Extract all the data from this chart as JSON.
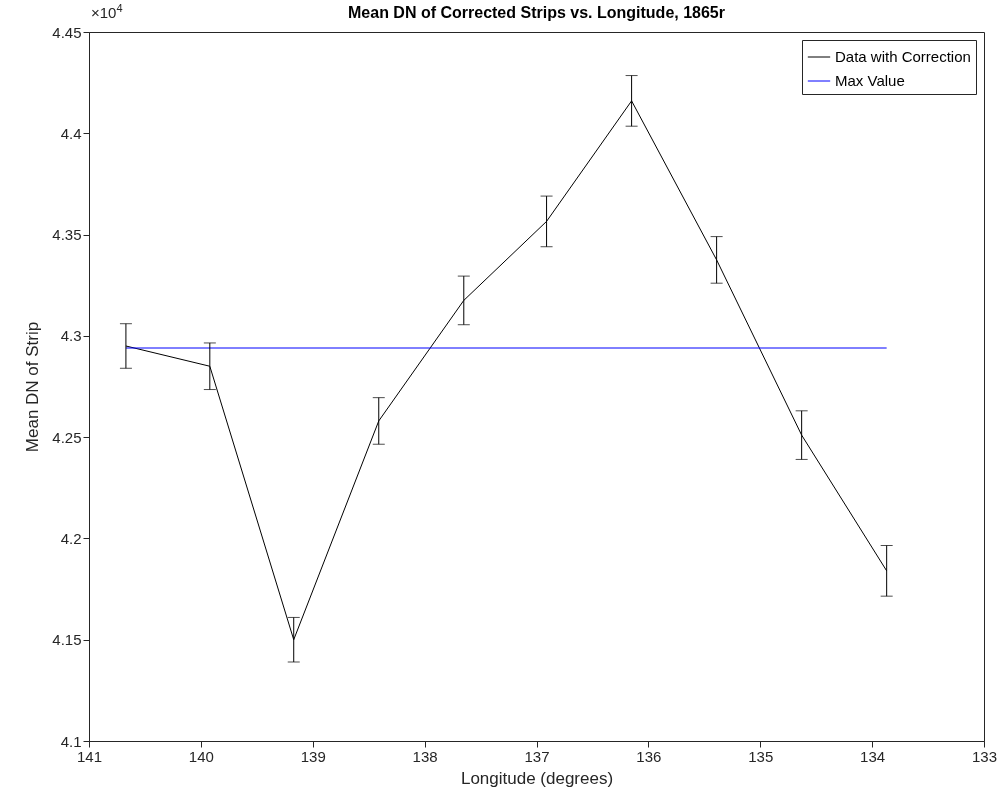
{
  "chart_data": {
    "type": "line",
    "title": "Mean DN of Corrected Strips vs. Longitude, 1865r",
    "xlabel": "Longitude (degrees)",
    "ylabel": "Mean DN of Strip",
    "annotations": [
      "×10$^{4}$"
    ],
    "xlim": [
      141,
      133
    ],
    "xticks": [
      141,
      140,
      139,
      138,
      137,
      136,
      135,
      134,
      133
    ],
    "ylim": [
      4.1,
      4.45
    ],
    "yticks": [
      4.1,
      4.15,
      4.2,
      4.25,
      4.3,
      4.35,
      4.4,
      4.45
    ],
    "grid": false,
    "legend": "top right",
    "marker": "none",
    "line_style": "solid",
    "series": [
      {
        "name": "Data with Correction",
        "color": "#000000",
        "x": [
          140.67,
          139.92,
          139.17,
          138.41,
          137.65,
          136.91,
          136.15,
          135.39,
          134.63,
          133.87
        ],
        "values": [
          4.295,
          4.285,
          4.15,
          4.258,
          4.3175,
          4.3565,
          4.416,
          4.3375,
          4.251,
          4.184
        ],
        "errors": [
          0.011,
          0.0115,
          0.011,
          0.0115,
          0.012,
          0.0125,
          0.0125,
          0.0115,
          0.012,
          0.0125
        ]
      },
      {
        "name": "Max Value",
        "color": "#0000ff",
        "x": [
          140.67,
          133.87
        ],
        "values": [
          4.294,
          4.294
        ]
      }
    ]
  }
}
